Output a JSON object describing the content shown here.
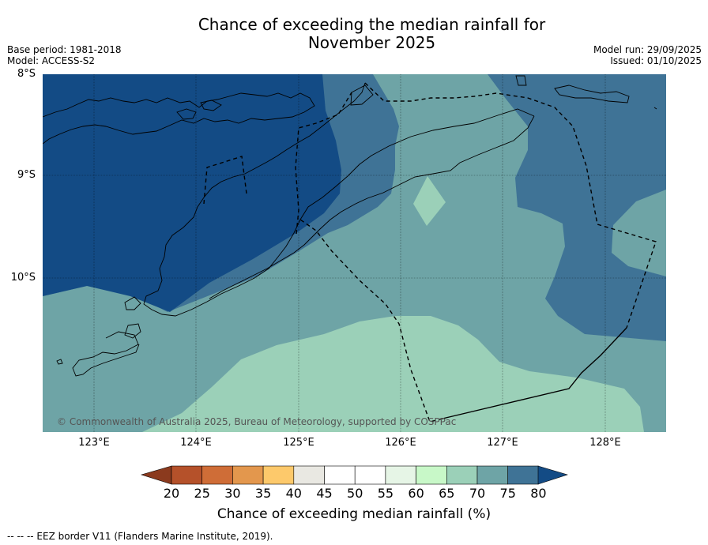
{
  "title": {
    "line1": "Chance of exceeding the median rainfall for",
    "line2": "November 2025"
  },
  "meta_left": {
    "base_period": "Base period: 1981-2018",
    "model": "Model: ACCESS-S2"
  },
  "meta_right": {
    "model_run": "Model run: 29/09/2025",
    "issued": "Issued: 01/10/2025"
  },
  "axes": {
    "lat_labels": [
      "8°S",
      "9°S",
      "10°S"
    ],
    "lon_labels": [
      "123°E",
      "124°E",
      "125°E",
      "126°E",
      "127°E",
      "128°E"
    ]
  },
  "map_layers": [
    "probability-contours",
    "coastlines",
    "eez-border",
    "graticule"
  ],
  "copyright": "© Commonwealth of Australia 2025, Bureau of Meteorology, supported by COSPPac",
  "colorbar": {
    "ticks": [
      "20",
      "25",
      "30",
      "35",
      "40",
      "45",
      "50",
      "55",
      "60",
      "65",
      "70",
      "75",
      "80"
    ],
    "colors": {
      "below_20": "#8b3a1e",
      "c20_25": "#b5512a",
      "c25_30": "#cf6d37",
      "c30_35": "#e3974d",
      "c35_40": "#fdc96b",
      "c40_45": "#e9e8e2",
      "c45_50": "#ffffff",
      "c50_55": "#ffffff",
      "c55_60": "#e6f5e6",
      "c60_65": "#c8f8c8",
      "c65_70": "#9bd0b8",
      "c70_75": "#6ea4a6",
      "c75_80": "#3f7396",
      "above_80": "#134b85"
    },
    "label": "Chance of exceeding median rainfall (%)"
  },
  "footnote": "--  --  -- EEZ border V11 (Flanders Marine Institute, 2019)."
}
